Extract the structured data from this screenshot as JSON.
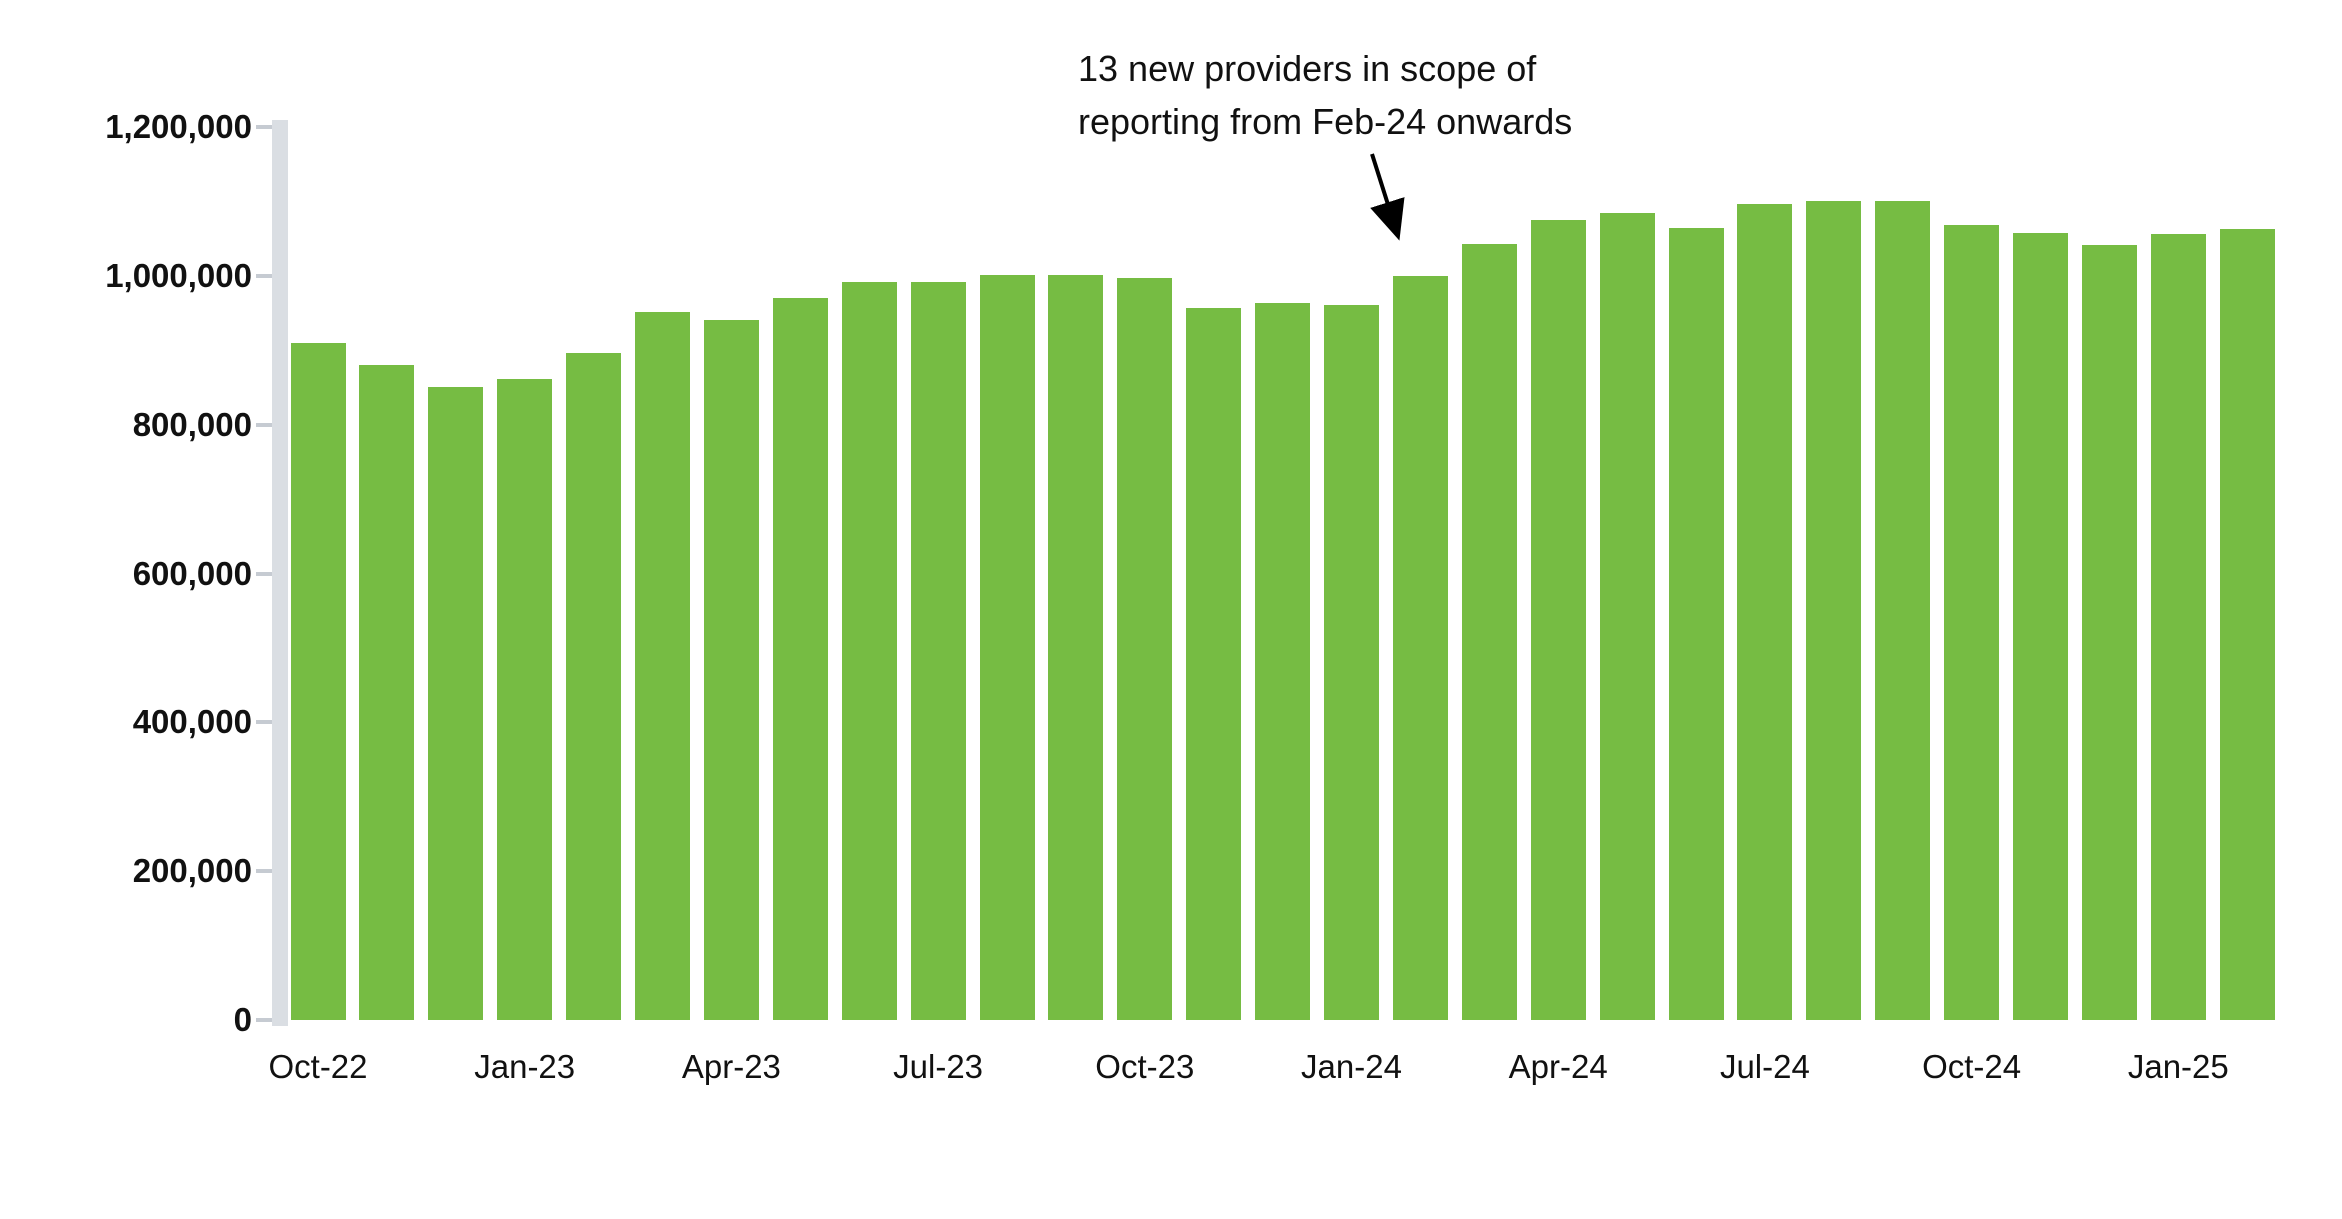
{
  "page": {
    "background": "#FFFFFF"
  },
  "annotation": {
    "line1": "13 new providers in scope of",
    "line2": "reporting from Feb-24 onwards"
  },
  "chart_data": {
    "type": "bar",
    "title": "",
    "xlabel": "",
    "ylabel": "",
    "categories": [
      "Oct-22",
      "Nov-22",
      "Dec-22",
      "Jan-23",
      "Feb-23",
      "Mar-23",
      "Apr-23",
      "May-23",
      "Jun-23",
      "Jul-23",
      "Aug-23",
      "Sep-23",
      "Oct-23",
      "Nov-23",
      "Dec-23",
      "Jan-24",
      "Feb-24",
      "Mar-24",
      "Apr-24",
      "May-24",
      "Jun-24",
      "Jul-24",
      "Aug-24",
      "Sep-24",
      "Oct-24",
      "Nov-24",
      "Dec-24",
      "Jan-25",
      "Feb-25"
    ],
    "values": [
      910000,
      880000,
      851000,
      862000,
      896000,
      951000,
      940000,
      970000,
      992000,
      992000,
      1001000,
      1001000,
      997000,
      957000,
      964000,
      961000,
      1000000,
      1043000,
      1075000,
      1085000,
      1064000,
      1096000,
      1101000,
      1100000,
      1068000,
      1058000,
      1041000,
      1056000,
      1063000
    ],
    "ylim": [
      0,
      1200000
    ],
    "ytick_values": [
      0,
      200000,
      400000,
      600000,
      800000,
      1000000,
      1200000
    ],
    "ytick_labels": [
      "0",
      "200,000",
      "400,000",
      "600,000",
      "800,000",
      "1,000,000",
      "1,200,000"
    ],
    "xtick_step": 3,
    "shown_xtick_labels": [
      "Oct-22",
      "Jan-23",
      "Apr-23",
      "Jul-23",
      "Oct-23",
      "Jan-24",
      "Apr-24",
      "Jul-24",
      "Oct-24",
      "Jan-25"
    ],
    "grid": false,
    "legend": "none",
    "bar_color": "#76BC43",
    "axis_band_color": "#DADEE3",
    "tick_color": "#C6CBD2",
    "text_color": "#111111",
    "annotation_target_category": "Feb-24"
  }
}
